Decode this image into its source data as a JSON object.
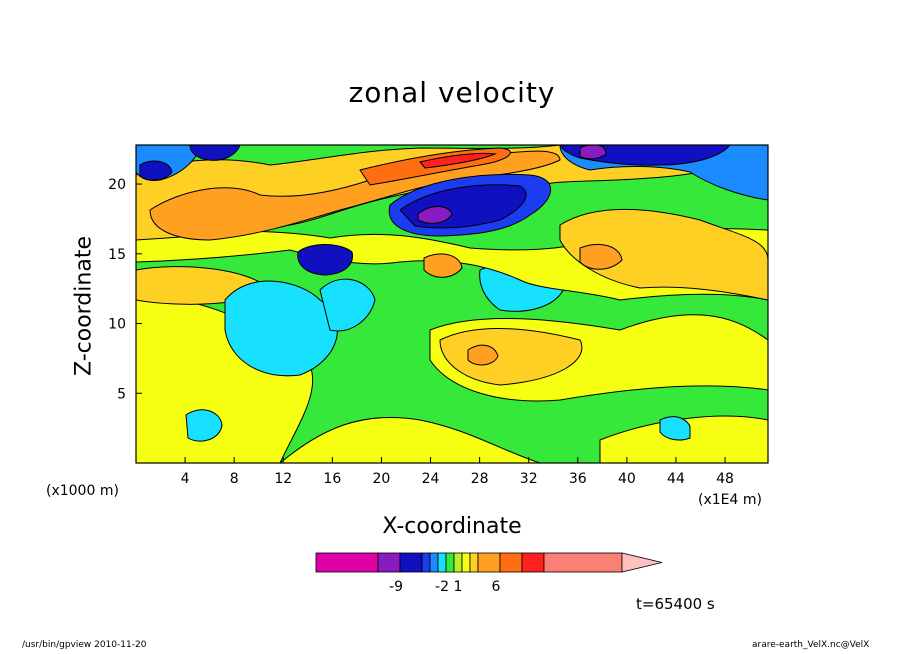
{
  "chart_data": {
    "type": "heatmap",
    "title": "zonal velocity",
    "xlabel": "X-coordinate",
    "ylabel": "Z-coordinate",
    "x_scale_note": "(x1E4 m)",
    "y_scale_note": "(x1000 m)",
    "xlim": [
      0,
      51.5
    ],
    "ylim": [
      0,
      22.8
    ],
    "x_ticks": [
      4,
      8,
      12,
      16,
      20,
      24,
      28,
      32,
      36,
      40,
      44,
      48
    ],
    "y_ticks": [
      5,
      10,
      15,
      20
    ],
    "colorbar": {
      "colors": [
        "#e000a8",
        "#8a1bc0",
        "#1010c0",
        "#1c3cf0",
        "#1a8cff",
        "#18e0ff",
        "#36e83a",
        "#b8f028",
        "#f6ff12",
        "#ffd024",
        "#ffa020",
        "#ff6e10",
        "#ff2020",
        "#fa8075"
      ],
      "tick_labels": [
        "-9",
        "-2",
        "1",
        "6"
      ]
    },
    "time": "t=65400 s"
  },
  "footer": {
    "left": "/usr/bin/gpview  2010-11-20",
    "right": "arare-earth_VelX.nc@VelX"
  }
}
